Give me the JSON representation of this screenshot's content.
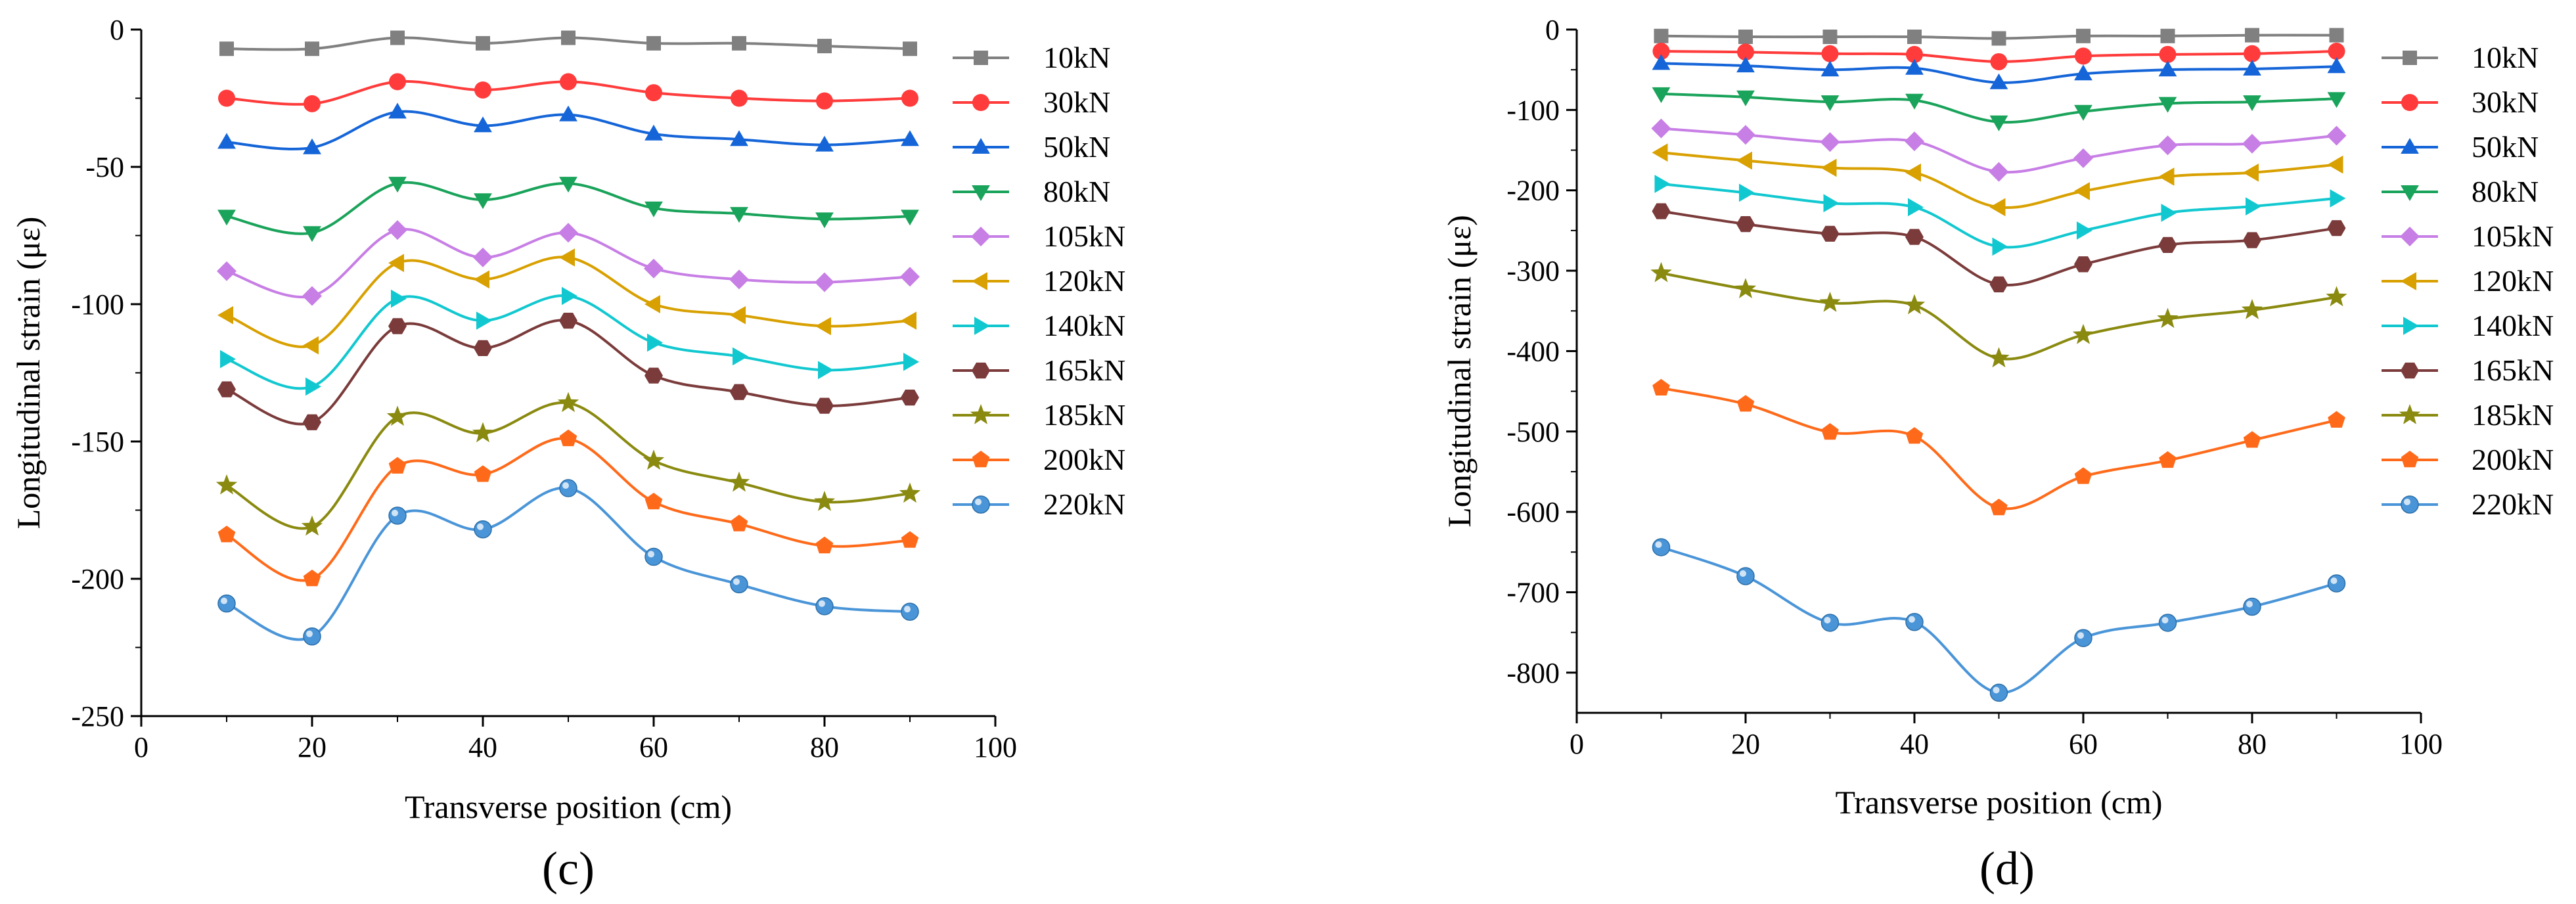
{
  "figure": {
    "left_label": "(c)",
    "right_label": "(d)"
  },
  "chart_data": [
    {
      "type": "line",
      "panel": "(c)",
      "xlabel": "Transverse position (cm)",
      "ylabel": "Longitudinal strain (με)",
      "xlim": [
        0,
        100
      ],
      "ylim": [
        -250,
        0
      ],
      "xticks": [
        0,
        20,
        40,
        60,
        80,
        100
      ],
      "yticks": [
        0,
        -50,
        -100,
        -150,
        -200,
        -250
      ],
      "x": [
        10,
        20,
        30,
        40,
        50,
        60,
        70,
        80,
        90
      ],
      "legend_position": "right",
      "series": [
        {
          "name": "10kN",
          "color": "#808080",
          "marker": "square",
          "values": [
            -7,
            -7,
            -3,
            -5,
            -3,
            -5,
            -5,
            -6,
            -7
          ]
        },
        {
          "name": "30kN",
          "color": "#ff3b3b",
          "marker": "circle",
          "values": [
            -25,
            -27,
            -19,
            -22,
            -19,
            -23,
            -25,
            -26,
            -25
          ]
        },
        {
          "name": "50kN",
          "color": "#1565d8",
          "marker": "triangle-up",
          "values": [
            -41,
            -43,
            -30,
            -35,
            -31,
            -38,
            -40,
            -42,
            -40
          ]
        },
        {
          "name": "80kN",
          "color": "#1aa35a",
          "marker": "triangle-down",
          "values": [
            -68,
            -74,
            -56,
            -62,
            -56,
            -65,
            -67,
            -69,
            -68
          ]
        },
        {
          "name": "105kN",
          "color": "#c77ee5",
          "marker": "diamond",
          "values": [
            -88,
            -97,
            -73,
            -83,
            -74,
            -87,
            -91,
            -92,
            -90
          ]
        },
        {
          "name": "120kN",
          "color": "#d8a000",
          "marker": "triangle-left",
          "values": [
            -104,
            -115,
            -85,
            -91,
            -83,
            -100,
            -104,
            -108,
            -106
          ]
        },
        {
          "name": "140kN",
          "color": "#12c8d0",
          "marker": "triangle-right",
          "values": [
            -120,
            -130,
            -98,
            -106,
            -97,
            -114,
            -119,
            -124,
            -121
          ]
        },
        {
          "name": "165kN",
          "color": "#7b3b3b",
          "marker": "hexagon",
          "values": [
            -131,
            -143,
            -108,
            -116,
            -106,
            -126,
            -132,
            -137,
            -134
          ]
        },
        {
          "name": "185kN",
          "color": "#8a8a10",
          "marker": "star",
          "values": [
            -166,
            -181,
            -141,
            -147,
            -136,
            -157,
            -165,
            -172,
            -169
          ]
        },
        {
          "name": "200kN",
          "color": "#ff6a1a",
          "marker": "pentagon",
          "values": [
            -184,
            -200,
            -159,
            -162,
            -149,
            -172,
            -180,
            -188,
            -186
          ]
        },
        {
          "name": "220kN",
          "color": "#4a95d8",
          "marker": "sphere",
          "values": [
            -209,
            -221,
            -177,
            -182,
            -167,
            -192,
            -202,
            -210,
            -212
          ]
        }
      ]
    },
    {
      "type": "line",
      "panel": "(d)",
      "xlabel": "Transverse position (cm)",
      "ylabel": "Longitudinal strain (με)",
      "xlim": [
        0,
        100
      ],
      "ylim": [
        -850,
        0
      ],
      "xticks": [
        0,
        20,
        40,
        60,
        80,
        100
      ],
      "yticks": [
        0,
        -100,
        -200,
        -300,
        -400,
        -500,
        -600,
        -700,
        -800
      ],
      "x": [
        10,
        20,
        30,
        40,
        50,
        60,
        70,
        80,
        90
      ],
      "legend_position": "right",
      "series": [
        {
          "name": "10kN",
          "color": "#808080",
          "marker": "square",
          "values": [
            -8,
            -9,
            -9,
            -9,
            -11,
            -8,
            -8,
            -7,
            -7
          ]
        },
        {
          "name": "30kN",
          "color": "#ff3b3b",
          "marker": "circle",
          "values": [
            -27,
            -28,
            -30,
            -31,
            -40,
            -33,
            -31,
            -30,
            -27
          ]
        },
        {
          "name": "50kN",
          "color": "#1565d8",
          "marker": "triangle-up",
          "values": [
            -42,
            -45,
            -50,
            -48,
            -66,
            -55,
            -50,
            -49,
            -46
          ]
        },
        {
          "name": "80kN",
          "color": "#1aa35a",
          "marker": "triangle-down",
          "values": [
            -80,
            -84,
            -90,
            -88,
            -115,
            -102,
            -92,
            -90,
            -86
          ]
        },
        {
          "name": "105kN",
          "color": "#c77ee5",
          "marker": "diamond",
          "values": [
            -123,
            -131,
            -140,
            -139,
            -177,
            -160,
            -144,
            -142,
            -132
          ]
        },
        {
          "name": "120kN",
          "color": "#d8a000",
          "marker": "triangle-left",
          "values": [
            -153,
            -163,
            -172,
            -178,
            -221,
            -201,
            -183,
            -178,
            -168
          ]
        },
        {
          "name": "140kN",
          "color": "#12c8d0",
          "marker": "triangle-right",
          "values": [
            -192,
            -203,
            -216,
            -221,
            -270,
            -250,
            -228,
            -220,
            -210
          ]
        },
        {
          "name": "165kN",
          "color": "#7b3b3b",
          "marker": "hexagon",
          "values": [
            -226,
            -242,
            -254,
            -258,
            -317,
            -292,
            -268,
            -262,
            -247
          ]
        },
        {
          "name": "185kN",
          "color": "#8a8a10",
          "marker": "star",
          "values": [
            -303,
            -323,
            -340,
            -343,
            -409,
            -380,
            -360,
            -349,
            -333
          ]
        },
        {
          "name": "200kN",
          "color": "#ff6a1a",
          "marker": "pentagon",
          "values": [
            -446,
            -466,
            -501,
            -506,
            -595,
            -556,
            -536,
            -511,
            -486
          ]
        },
        {
          "name": "220kN",
          "color": "#4a95d8",
          "marker": "sphere",
          "values": [
            -644,
            -680,
            -738,
            -737,
            -825,
            -757,
            -738,
            -718,
            -689
          ]
        }
      ]
    }
  ]
}
